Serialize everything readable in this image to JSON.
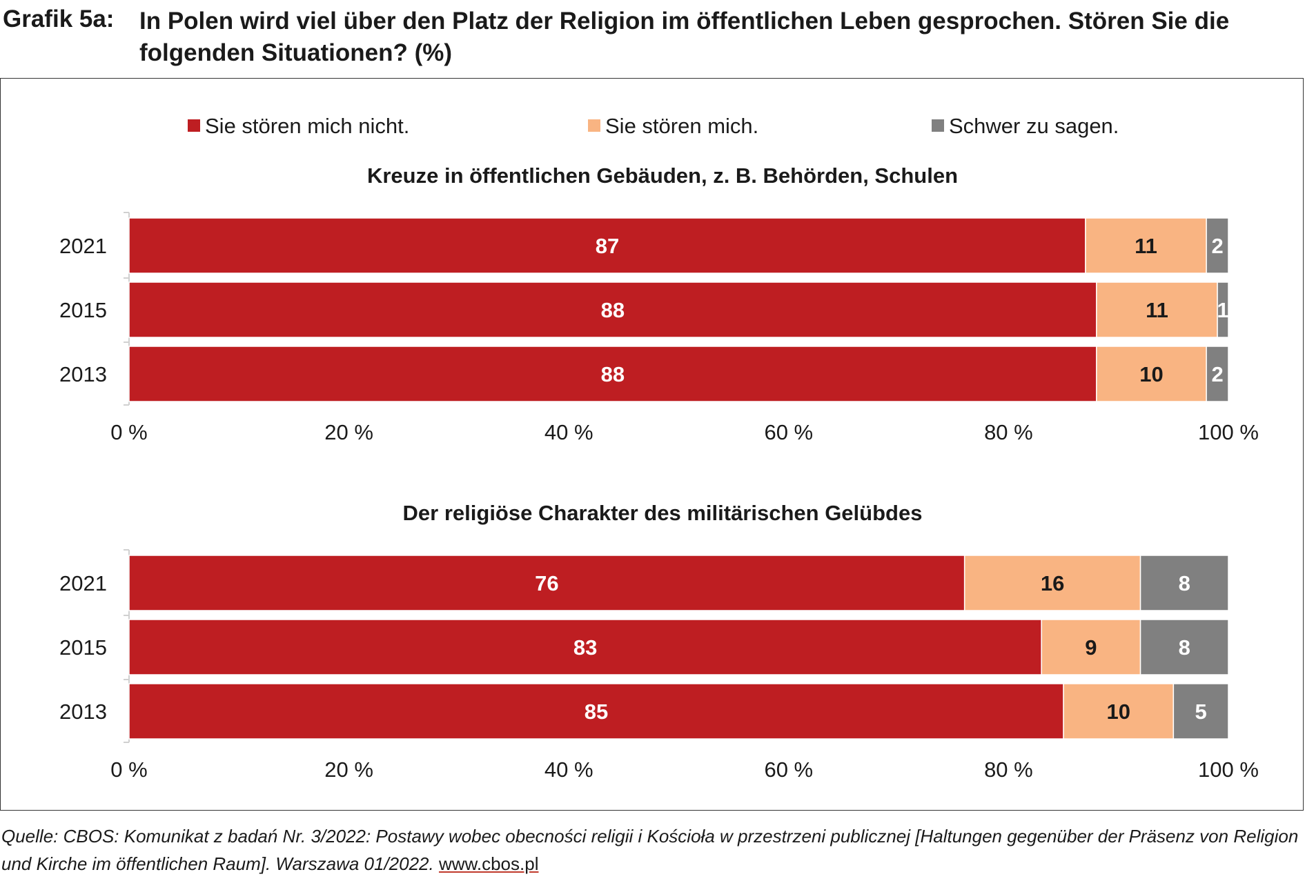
{
  "figure": {
    "label": "Grafik 5a:",
    "title": "In Polen wird viel über den Platz der Religion im öffentlichen Leben gesprochen. Stören Sie die folgenden Situationen? (%)"
  },
  "legend": [
    {
      "name": "Sie stören mich nicht.",
      "color": "#be1e22"
    },
    {
      "name": "Sie stören mich.",
      "color": "#f9b482"
    },
    {
      "name": "Schwer zu sagen.",
      "color": "#808080"
    }
  ],
  "source": {
    "text": "Quelle: CBOS: Komunikat z badań Nr. 3/2022: Postawy wobec obecności religii i Kościoła w przestrzeni publicznej [Haltungen gegenüber der Präsenz von Religion und Kirche im öffentlichen Raum]. Warszawa 01/2022.",
    "link": "www.cbos.pl"
  },
  "chart_data": [
    {
      "type": "bar",
      "stacked": true,
      "orientation": "horizontal",
      "title": "Kreuze in öffentlichen Gebäuden, z. B. Behörden, Schulen",
      "categories": [
        "2021",
        "2015",
        "2013"
      ],
      "series": [
        {
          "name": "Sie stören mich nicht.",
          "values": [
            87,
            88,
            88
          ]
        },
        {
          "name": "Sie stören mich.",
          "values": [
            11,
            11,
            10
          ]
        },
        {
          "name": "Schwer zu sagen.",
          "values": [
            2,
            1,
            2
          ]
        }
      ],
      "xlim": [
        0,
        100
      ],
      "xticks": [
        "0 %",
        "20 %",
        "40 %",
        "60 %",
        "80 %",
        "100 %"
      ],
      "legend": "top",
      "grid": false
    },
    {
      "type": "bar",
      "stacked": true,
      "orientation": "horizontal",
      "title": "Der religiöse Charakter des militärischen Gelübdes",
      "categories": [
        "2021",
        "2015",
        "2013"
      ],
      "series": [
        {
          "name": "Sie stören mich nicht.",
          "values": [
            76,
            83,
            85
          ]
        },
        {
          "name": "Sie stören mich.",
          "values": [
            16,
            9,
            10
          ]
        },
        {
          "name": "Schwer zu sagen.",
          "values": [
            8,
            8,
            5
          ]
        }
      ],
      "xlim": [
        0,
        100
      ],
      "xticks": [
        "0 %",
        "20 %",
        "40 %",
        "60 %",
        "80 %",
        "100 %"
      ],
      "legend": "top",
      "grid": false
    }
  ]
}
